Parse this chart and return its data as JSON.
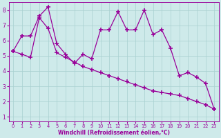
{
  "xlabel": "Windchill (Refroidissement éolien,°C)",
  "line1_x": [
    0,
    1,
    2,
    3,
    4,
    5,
    6,
    7,
    8,
    9,
    10,
    11,
    12,
    13,
    14,
    15,
    16,
    17,
    18,
    19,
    20,
    21,
    22,
    23
  ],
  "line1_y": [
    5.3,
    6.3,
    6.3,
    7.6,
    8.2,
    5.8,
    5.1,
    4.5,
    5.1,
    4.8,
    6.7,
    6.7,
    7.9,
    6.7,
    6.7,
    8.0,
    6.4,
    6.7,
    5.5,
    3.7,
    3.9,
    3.6,
    3.2,
    1.5
  ],
  "line2_x": [
    0,
    1,
    2,
    3,
    4,
    5,
    6,
    7,
    8,
    9,
    10,
    11,
    12,
    13,
    14,
    15,
    16,
    17,
    18,
    19,
    20,
    21,
    22,
    23
  ],
  "line2_y": [
    5.3,
    5.1,
    4.9,
    7.5,
    6.8,
    5.2,
    4.9,
    4.6,
    4.3,
    4.1,
    3.9,
    3.7,
    3.5,
    3.3,
    3.1,
    2.9,
    2.7,
    2.6,
    2.5,
    2.4,
    2.2,
    2.0,
    1.8,
    1.5
  ],
  "line_color": "#990099",
  "marker": "+",
  "markersize": 4,
  "linewidth": 0.9,
  "markeredgewidth": 1.2,
  "bg_color": "#ceeaea",
  "grid_color": "#a8d0d0",
  "xlim_min": -0.5,
  "xlim_max": 23.5,
  "ylim_min": 0.7,
  "ylim_max": 8.5,
  "xticks": [
    0,
    1,
    2,
    3,
    4,
    5,
    6,
    7,
    8,
    9,
    10,
    11,
    12,
    13,
    14,
    15,
    16,
    17,
    18,
    19,
    20,
    21,
    22,
    23
  ],
  "yticks": [
    1,
    2,
    3,
    4,
    5,
    6,
    7,
    8
  ],
  "xtick_fontsize": 4.8,
  "ytick_fontsize": 5.5,
  "xlabel_fontsize": 5.5
}
